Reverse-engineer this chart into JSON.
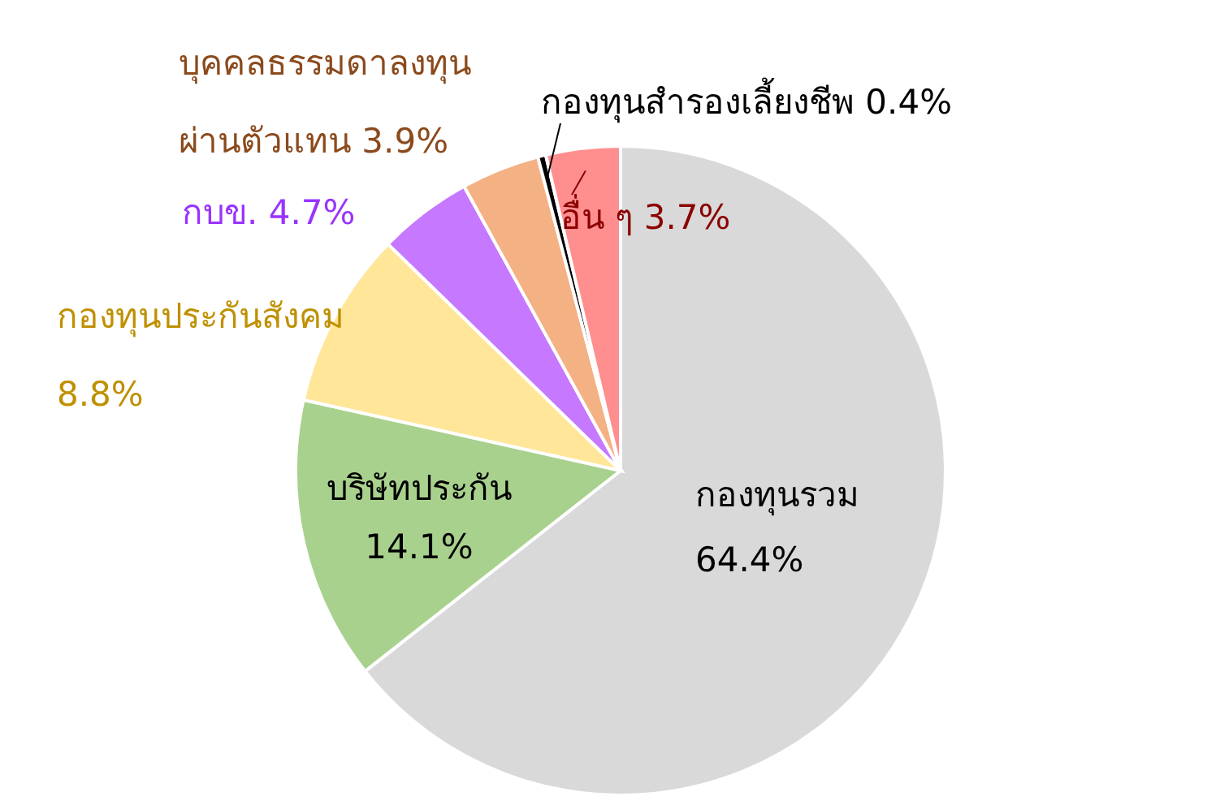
{
  "chart_data": {
    "type": "pie",
    "categories": [
      "กองทุนรวม",
      "บริษัทประกัน",
      "กองทุนประกันสังคม",
      "กบข.",
      "บุคคลธรรมดาลงทุนผ่านตัวแทน",
      "กองทุนสำรองเลี้ยงชีพ",
      "อื่น ๆ"
    ],
    "values": [
      64.4,
      14.1,
      8.8,
      4.7,
      3.9,
      0.4,
      3.7
    ],
    "value_labels": [
      "64.4%",
      "14.1%",
      "8.8%",
      "4.7%",
      "3.9%",
      "0.4%",
      "3.7%"
    ],
    "colors": [
      "#d9d9d9",
      "#a9d18e",
      "#ffe699",
      "#c678ff",
      "#f4b183",
      "#000000",
      "#ff8f8f"
    ]
  }
}
